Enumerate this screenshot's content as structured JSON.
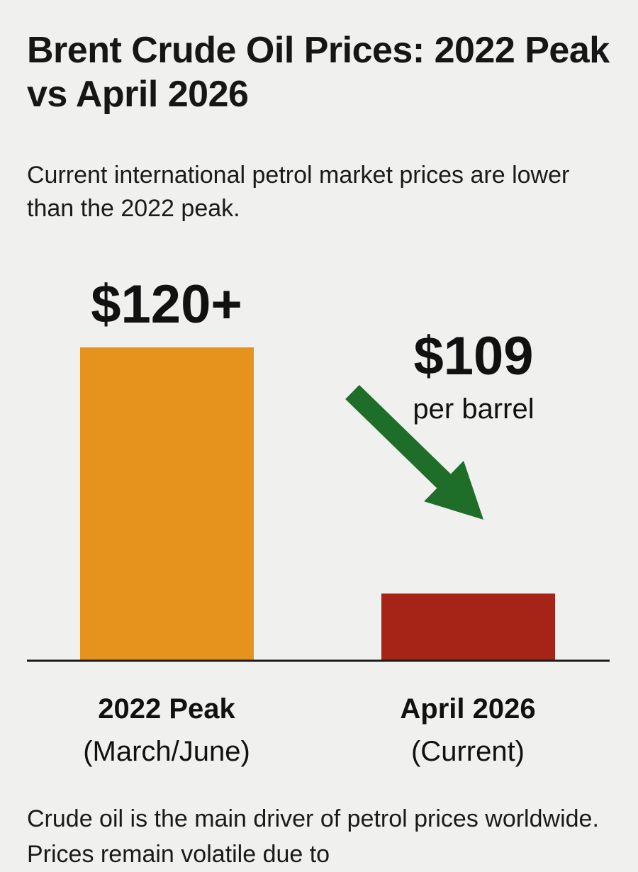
{
  "title": "Brent Crude Oil Prices: 2022 Peak vs April 2026",
  "subtitle": "Current international petrol market prices are lower than the 2022 peak.",
  "footnote": "Crude oil is the main driver of petrol prices worldwide. Prices remain volatile due to",
  "colors": {
    "peak_bar": "#e5931c",
    "current_bar": "#a62417",
    "arrow": "#1e6e2a",
    "baseline": "#1a1a1a",
    "text": "#111111"
  },
  "chart_data": {
    "type": "bar",
    "categories": [
      "2022 Peak",
      "April 2026"
    ],
    "category_sublabels": [
      "(March/June)",
      "(Current)"
    ],
    "values": [
      120,
      109
    ],
    "value_labels": [
      "$120+",
      "$109"
    ],
    "unit_label": "per barrel",
    "annotation": {
      "type": "downward-arrow",
      "from": "2022 Peak",
      "to": "April 2026"
    },
    "title": "Brent Crude Oil Prices: 2022 Peak vs April 2026",
    "xlabel": "",
    "ylabel": "",
    "grid": false,
    "legend": "none"
  }
}
